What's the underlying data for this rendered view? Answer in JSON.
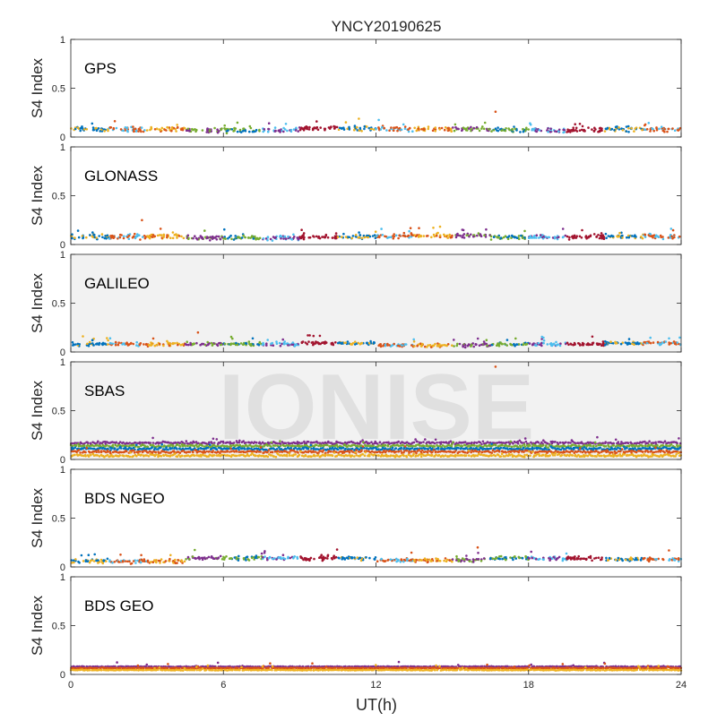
{
  "figure": {
    "title": "YNCY20190625",
    "watermark": "IONISE",
    "x_label": "UT(h)",
    "x_ticks": [
      "0",
      "6",
      "12",
      "18",
      "24"
    ],
    "y_ticks": [
      "0",
      "0.5",
      "1"
    ]
  },
  "colors": {
    "series": [
      "#0072BD",
      "#D95319",
      "#EDB120",
      "#7E2F8E",
      "#77AC30",
      "#4DBEEE",
      "#A2142F"
    ],
    "axis": "#262626",
    "watermark": "#e0e0e0",
    "panel_bg_shaded": "#f2f2f2"
  },
  "chart_data": [
    {
      "type": "scatter",
      "panel_label": "GPS",
      "ylabel": "S4 Index",
      "xlim": [
        0,
        24
      ],
      "ylim": [
        0,
        1
      ],
      "x_ticks": [
        0,
        6,
        12,
        18,
        24
      ],
      "y_ticks": [
        0,
        0.5,
        1
      ],
      "shaded_background": false,
      "s4_level": [
        0.08,
        0.07,
        0.09,
        0.08,
        0.07,
        0.08
      ],
      "s4_spread": 0.035,
      "max_point": {
        "x": 16.7,
        "y": 0.26
      },
      "series_count": 7
    },
    {
      "type": "scatter",
      "panel_label": "GLONASS",
      "ylabel": "S4 Index",
      "xlim": [
        0,
        24
      ],
      "ylim": [
        0,
        1
      ],
      "x_ticks": [
        0,
        6,
        12,
        18,
        24
      ],
      "y_ticks": [
        0,
        0.5,
        1
      ],
      "shaded_background": false,
      "s4_level": [
        0.08,
        0.07,
        0.08,
        0.09,
        0.08,
        0.08
      ],
      "s4_spread": 0.035,
      "max_point": {
        "x": 2.8,
        "y": 0.25
      },
      "series_count": 7
    },
    {
      "type": "scatter",
      "panel_label": "GALILEO",
      "ylabel": "S4 Index",
      "xlim": [
        0,
        24
      ],
      "ylim": [
        0,
        1
      ],
      "x_ticks": [
        0,
        6,
        12,
        18,
        24
      ],
      "y_ticks": [
        0,
        0.5,
        1
      ],
      "shaded_background": true,
      "s4_level": [
        0.08,
        0.08,
        0.09,
        0.07,
        0.08,
        0.09
      ],
      "s4_spread": 0.025,
      "max_point": {
        "x": 5.0,
        "y": 0.2
      },
      "series_count": 7
    },
    {
      "type": "scatter",
      "panel_label": "SBAS",
      "ylabel": "S4 Index",
      "xlim": [
        0,
        24
      ],
      "ylim": [
        0,
        1
      ],
      "x_ticks": [
        0,
        6,
        12,
        18,
        24
      ],
      "y_ticks": [
        0,
        0.5,
        1
      ],
      "shaded_background": true,
      "bands": [
        {
          "color": 3,
          "level": 0.17
        },
        {
          "color": 4,
          "level": 0.14
        },
        {
          "color": 0,
          "level": 0.11
        },
        {
          "color": 1,
          "level": 0.08
        },
        {
          "color": 2,
          "level": 0.04
        }
      ],
      "s4_spread": 0.02,
      "max_point": {
        "x": 16.7,
        "y": 0.95
      },
      "series_count": 5
    },
    {
      "type": "scatter",
      "panel_label": "BDS NGEO",
      "ylabel": "S4 Index",
      "xlim": [
        0,
        24
      ],
      "ylim": [
        0,
        1
      ],
      "x_ticks": [
        0,
        6,
        12,
        18,
        24
      ],
      "y_ticks": [
        0,
        0.5,
        1
      ],
      "shaded_background": false,
      "s4_level": [
        0.06,
        0.09,
        0.09,
        0.07,
        0.09,
        0.08
      ],
      "s4_spread": 0.03,
      "max_point": {
        "x": 16.0,
        "y": 0.2
      },
      "series_count": 7
    },
    {
      "type": "scatter",
      "panel_label": "BDS GEO",
      "ylabel": "S4 Index",
      "xlim": [
        0,
        24
      ],
      "ylim": [
        0,
        1
      ],
      "x_ticks": [
        0,
        6,
        12,
        18,
        24
      ],
      "y_ticks": [
        0,
        0.5,
        1
      ],
      "shaded_background": false,
      "bands": [
        {
          "color": 3,
          "level": 0.08
        },
        {
          "color": 1,
          "level": 0.065
        },
        {
          "color": 2,
          "level": 0.045
        }
      ],
      "s4_spread": 0.006,
      "max_point": {
        "x": 21.0,
        "y": 0.11
      },
      "series_count": 3
    }
  ]
}
